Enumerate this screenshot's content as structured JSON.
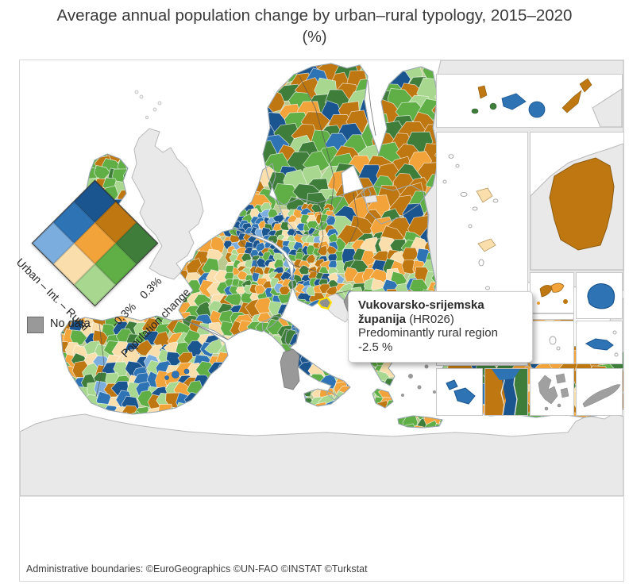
{
  "title": {
    "line1": "Average annual population change by urban–rural typology, 2015–2020",
    "line2": "(%)"
  },
  "legend": {
    "typology_axis_label": "Urban – Int. – Rural",
    "change_tick_labels": "-0.3% 0.3%",
    "change_axis_label": "Population change",
    "no_data_label": "No data",
    "matrix": [
      [
        "#1b558f",
        "#bf7811",
        "#3f7d3b"
      ],
      [
        "#2e74b5",
        "#f2a33a",
        "#5fae46"
      ],
      [
        "#7badde",
        "#fadfad",
        "#a8d88f"
      ]
    ]
  },
  "tooltip": {
    "region_name": "Vukovarsko-srijemska županija",
    "region_code": "(HR026)",
    "typology": "Predominantly rural region",
    "value": "-2.5 %"
  },
  "footer": {
    "attribution": "Administrative boundaries: ©EuroGeographics ©UN-FAO ©INSTAT ©Turkstat"
  },
  "colors": {
    "palette": {
      "bd": "#1b558f",
      "bm": "#2e74b5",
      "bl": "#7badde",
      "od": "#bf7811",
      "om": "#f2a33a",
      "ol": "#fadfad",
      "gd": "#3f7d3b",
      "gm": "#5fae46",
      "gl": "#a8d88f"
    },
    "no_data": "#999999",
    "non_eu_land": "#e9e9e9",
    "land_border": "#b9b9b9",
    "sea": "#ffffff",
    "highlight": "#ffe100",
    "underlay": "#b9c98f",
    "coast": "#9aa7b0"
  }
}
